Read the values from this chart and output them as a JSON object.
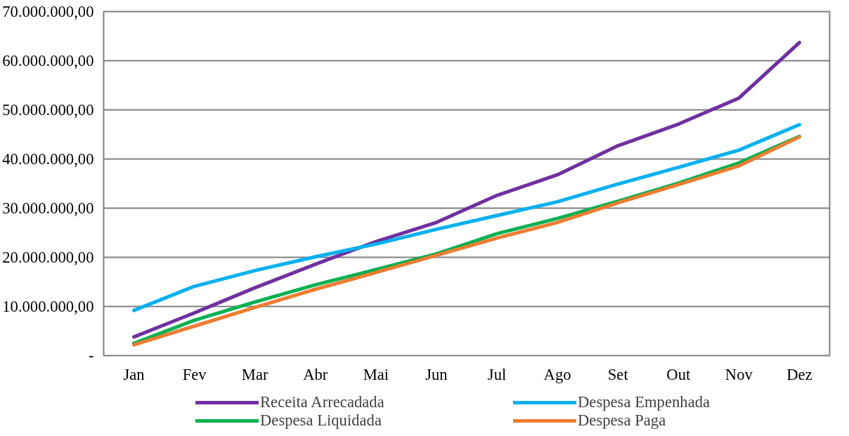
{
  "chart_data": {
    "type": "line",
    "categories": [
      "Jan",
      "Fev",
      "Mar",
      "Abr",
      "Mai",
      "Jun",
      "Jul",
      "Ago",
      "Set",
      "Out",
      "Nov",
      "Dez"
    ],
    "series": [
      {
        "name": "Receita Arrecadada",
        "color": "#7030a0",
        "values": [
          3800000,
          8700000,
          13800000,
          18600000,
          23200000,
          27100000,
          32600000,
          36800000,
          42700000,
          47100000,
          52400000,
          63700000
        ]
      },
      {
        "name": "Despesa Empenhada",
        "color": "#00b0f0",
        "values": [
          9200000,
          14100000,
          17300000,
          20100000,
          22700000,
          25700000,
          28500000,
          31300000,
          34900000,
          38300000,
          41800000,
          47000000
        ]
      },
      {
        "name": "Despesa Liquidada",
        "color": "#00b050",
        "values": [
          2500000,
          7200000,
          10900000,
          14400000,
          17500000,
          20700000,
          24800000,
          27900000,
          31400000,
          35100000,
          39200000,
          44600000
        ]
      },
      {
        "name": "Despesa Paga",
        "color": "#ed7d31",
        "values": [
          2200000,
          6000000,
          9800000,
          13500000,
          16900000,
          20400000,
          23900000,
          27100000,
          31100000,
          34800000,
          38600000,
          44500000
        ]
      }
    ],
    "ylim": [
      0,
      70000000
    ],
    "yticks": [
      {
        "value": 0,
        "label": "-"
      },
      {
        "value": 10000000,
        "label": "10.000.000,00"
      },
      {
        "value": 20000000,
        "label": "20.000.000,00"
      },
      {
        "value": 30000000,
        "label": "30.000.000,00"
      },
      {
        "value": 40000000,
        "label": "40.000.000,00"
      },
      {
        "value": 50000000,
        "label": "50.000.000,00"
      },
      {
        "value": 60000000,
        "label": "60.000.000,00"
      },
      {
        "value": 70000000,
        "label": "70.000.000,00"
      }
    ],
    "grid": "y",
    "legend": "bottom",
    "marker": "none",
    "line_style": "solid"
  }
}
